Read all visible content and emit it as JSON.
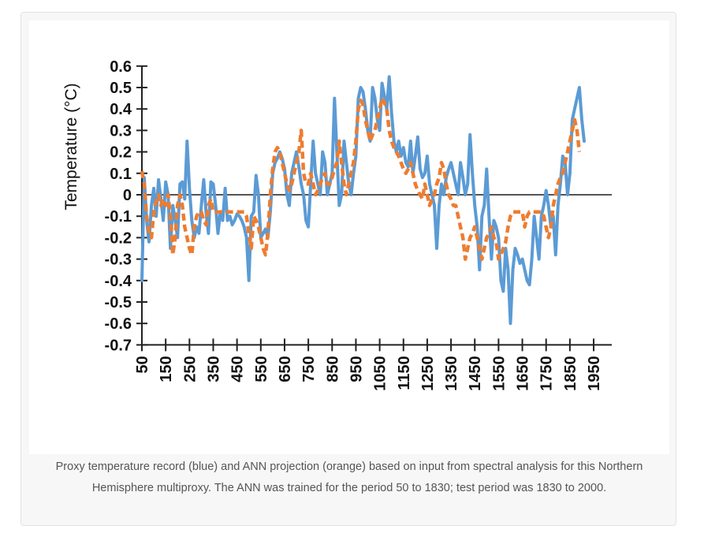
{
  "caption": "Proxy temperature record (blue) and ANN projection (orange) based on input from spectral analysis for this Northern Hemisphere multiproxy. The ANN was trained for the period 50 to 1830; test period was 1830 to 2000.",
  "chart_data": {
    "type": "line",
    "title": "",
    "xlabel": "",
    "ylabel": "Temperature (°C)",
    "xlim": [
      50,
      2020
    ],
    "ylim": [
      -0.7,
      0.6
    ],
    "grid": false,
    "legend": "none",
    "x_ticks": [
      "50",
      "150",
      "250",
      "350",
      "450",
      "550",
      "650",
      "750",
      "850",
      "950",
      "1050",
      "1150",
      "1250",
      "1350",
      "1450",
      "1550",
      "1650",
      "1750",
      "1850",
      "1950"
    ],
    "y_ticks": [
      "0.6",
      "0.5",
      "0.4",
      "0.3",
      "0.2",
      "0.1",
      "0",
      "-0.1",
      "-0.2",
      "-0.3",
      "-0.4",
      "-0.5",
      "-0.6",
      "-0.7"
    ],
    "x": [
      50,
      60,
      70,
      80,
      90,
      100,
      110,
      120,
      130,
      140,
      150,
      160,
      170,
      180,
      190,
      200,
      210,
      220,
      230,
      240,
      250,
      260,
      270,
      280,
      290,
      300,
      310,
      320,
      330,
      340,
      350,
      360,
      370,
      380,
      390,
      400,
      410,
      420,
      430,
      440,
      450,
      460,
      470,
      480,
      490,
      500,
      510,
      520,
      530,
      540,
      550,
      560,
      570,
      580,
      590,
      600,
      610,
      620,
      630,
      640,
      650,
      660,
      670,
      680,
      690,
      700,
      710,
      720,
      730,
      740,
      750,
      760,
      770,
      780,
      790,
      800,
      810,
      820,
      830,
      840,
      850,
      860,
      870,
      880,
      890,
      900,
      910,
      920,
      930,
      940,
      950,
      960,
      970,
      980,
      990,
      1000,
      1010,
      1020,
      1030,
      1040,
      1050,
      1060,
      1070,
      1080,
      1090,
      1100,
      1110,
      1120,
      1130,
      1140,
      1150,
      1160,
      1170,
      1180,
      1190,
      1200,
      1210,
      1220,
      1230,
      1240,
      1250,
      1260,
      1270,
      1280,
      1290,
      1300,
      1310,
      1320,
      1330,
      1340,
      1350,
      1360,
      1370,
      1380,
      1390,
      1400,
      1410,
      1420,
      1430,
      1440,
      1450,
      1460,
      1470,
      1480,
      1490,
      1500,
      1510,
      1520,
      1530,
      1540,
      1550,
      1560,
      1570,
      1580,
      1590,
      1600,
      1610,
      1620,
      1630,
      1640,
      1650,
      1660,
      1670,
      1680,
      1690,
      1700,
      1710,
      1720,
      1730,
      1740,
      1750,
      1760,
      1770,
      1780,
      1790,
      1800,
      1810,
      1820,
      1830,
      1840,
      1850,
      1860,
      1870,
      1880,
      1890,
      1900,
      1910,
      1920,
      1930,
      1940,
      1950,
      1960,
      1970,
      1980,
      1990,
      2000
    ],
    "series": [
      {
        "name": "Proxy temperature record",
        "color": "#5b9bd5",
        "style": "solid",
        "values": [
          -0.4,
          0.08,
          -0.12,
          -0.22,
          -0.05,
          0.03,
          -0.1,
          0.07,
          -0.02,
          -0.12,
          0.06,
          0.0,
          -0.25,
          -0.05,
          -0.12,
          -0.2,
          0.05,
          0.06,
          -0.02,
          0.25,
          0.03,
          -0.12,
          -0.2,
          -0.15,
          -0.18,
          -0.05,
          0.07,
          -0.08,
          -0.18,
          0.06,
          0.05,
          -0.05,
          -0.18,
          -0.08,
          -0.12,
          0.03,
          -0.12,
          -0.1,
          -0.14,
          -0.12,
          -0.09,
          -0.1,
          -0.12,
          -0.15,
          -0.2,
          -0.4,
          -0.1,
          -0.08,
          0.09,
          0.0,
          -0.2,
          -0.18,
          -0.16,
          -0.2,
          -0.08,
          0.1,
          0.15,
          0.17,
          0.2,
          0.17,
          0.12,
          0.0,
          -0.05,
          0.1,
          0.15,
          0.2,
          0.13,
          0.05,
          0.0,
          -0.12,
          -0.15,
          0.05,
          0.25,
          0.1,
          0.05,
          0.0,
          0.2,
          0.15,
          0.0,
          0.05,
          0.1,
          0.45,
          0.2,
          -0.05,
          0.0,
          0.25,
          0.15,
          0.05,
          0.0,
          0.1,
          0.18,
          0.45,
          0.5,
          0.48,
          0.4,
          0.3,
          0.25,
          0.5,
          0.45,
          0.35,
          0.3,
          0.52,
          0.46,
          0.4,
          0.55,
          0.38,
          0.25,
          0.2,
          0.25,
          0.18,
          0.22,
          0.15,
          0.13,
          0.25,
          0.1,
          0.18,
          0.27,
          0.12,
          0.08,
          0.1,
          0.18,
          0.05,
          0.0,
          -0.05,
          -0.25,
          -0.05,
          0.05,
          0.0,
          0.08,
          0.12,
          0.15,
          0.1,
          0.05,
          0.0,
          0.15,
          0.08,
          0.0,
          0.05,
          0.28,
          0.1,
          -0.05,
          -0.15,
          -0.35,
          -0.1,
          -0.05,
          0.12,
          -0.1,
          -0.3,
          -0.12,
          -0.15,
          -0.2,
          -0.4,
          -0.45,
          -0.25,
          -0.35,
          -0.6,
          -0.35,
          -0.25,
          -0.28,
          -0.32,
          -0.3,
          -0.35,
          -0.4,
          -0.42,
          -0.3,
          -0.1,
          -0.2,
          -0.3,
          -0.1,
          -0.05,
          0.02,
          -0.05,
          -0.15,
          -0.1,
          -0.28,
          -0.05,
          0.05,
          0.18,
          0.15,
          0.0,
          0.1,
          0.35,
          0.4,
          0.45,
          0.5,
          0.35,
          0.25
        ]
      },
      {
        "name": "ANN projection",
        "color": "#ed7d31",
        "style": "dashed",
        "values": [
          0.11,
          0.05,
          -0.1,
          -0.18,
          -0.2,
          -0.08,
          -0.03,
          0.0,
          -0.05,
          -0.02,
          -0.05,
          0.0,
          -0.1,
          -0.28,
          -0.2,
          -0.05,
          0.0,
          -0.05,
          -0.15,
          -0.2,
          -0.25,
          -0.28,
          -0.15,
          -0.1,
          -0.08,
          -0.08,
          -0.12,
          -0.14,
          -0.05,
          -0.02,
          -0.08,
          -0.08,
          -0.08,
          -0.08,
          -0.08,
          -0.08,
          -0.08,
          -0.08,
          -0.08,
          -0.08,
          -0.08,
          -0.08,
          -0.08,
          -0.08,
          -0.1,
          -0.18,
          -0.25,
          -0.1,
          -0.12,
          -0.15,
          -0.2,
          -0.25,
          -0.28,
          -0.18,
          0.0,
          0.12,
          0.2,
          0.22,
          0.2,
          0.15,
          0.1,
          0.05,
          0.02,
          0.05,
          0.1,
          0.15,
          0.2,
          0.3,
          0.1,
          0.05,
          0.05,
          0.1,
          0.05,
          0.0,
          0.02,
          0.05,
          0.08,
          0.1,
          0.05,
          0.05,
          0.08,
          0.12,
          0.15,
          0.25,
          0.15,
          0.05,
          0.0,
          0.05,
          0.1,
          0.15,
          0.25,
          0.4,
          0.44,
          0.42,
          0.35,
          0.3,
          0.25,
          0.28,
          0.3,
          0.35,
          0.4,
          0.45,
          0.43,
          0.4,
          0.3,
          0.25,
          0.22,
          0.2,
          0.18,
          0.15,
          0.12,
          0.1,
          0.12,
          0.15,
          0.1,
          0.05,
          0.02,
          0.0,
          -0.02,
          0.05,
          0.0,
          -0.05,
          -0.02,
          0.0,
          0.05,
          0.08,
          0.15,
          0.12,
          0.05,
          0.0,
          -0.02,
          -0.05,
          -0.05,
          -0.1,
          -0.15,
          -0.2,
          -0.3,
          -0.25,
          -0.2,
          -0.18,
          -0.15,
          -0.2,
          -0.25,
          -0.3,
          -0.25,
          -0.2,
          -0.18,
          -0.15,
          -0.2,
          -0.22,
          -0.3,
          -0.28,
          -0.25,
          -0.22,
          -0.15,
          -0.1,
          -0.08,
          -0.08,
          -0.08,
          -0.08,
          -0.08,
          -0.15,
          -0.1,
          -0.08,
          -0.08,
          -0.08,
          -0.08,
          -0.08,
          -0.08,
          -0.1,
          -0.15,
          -0.2,
          -0.15,
          -0.05,
          0.0,
          0.05,
          0.08,
          0.1,
          0.15,
          0.2,
          0.25,
          0.3,
          0.35,
          0.3,
          0.2
        ]
      }
    ]
  }
}
